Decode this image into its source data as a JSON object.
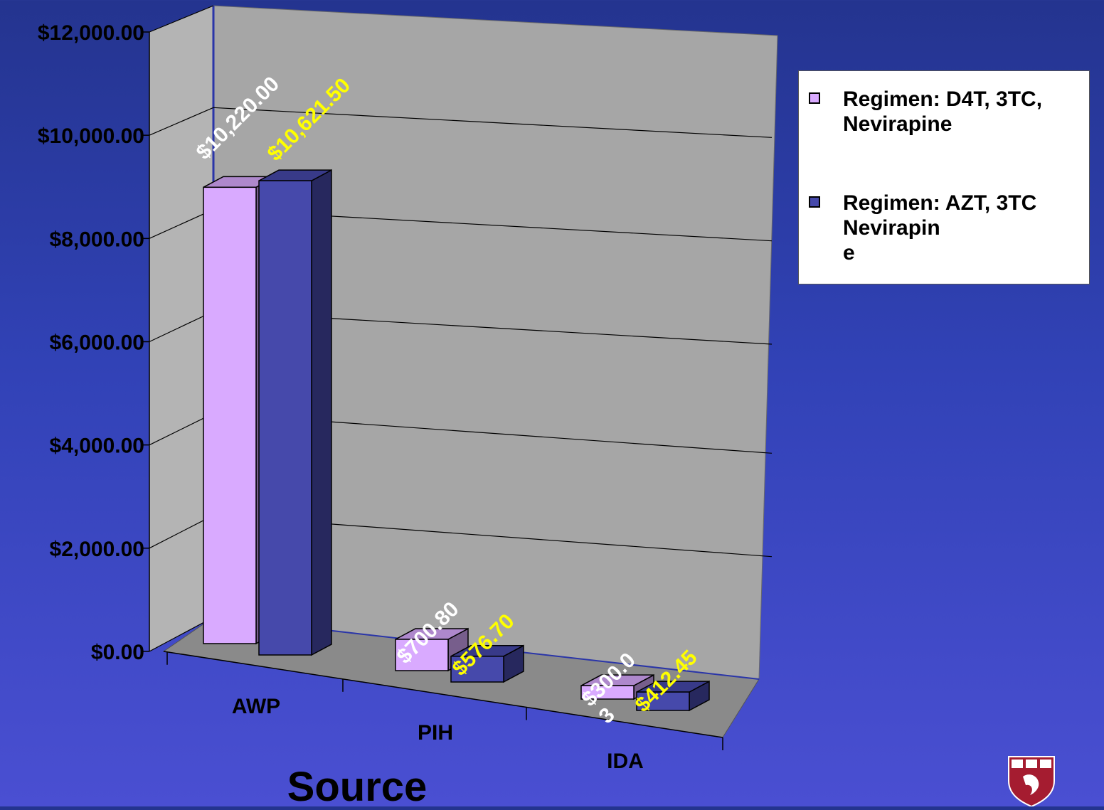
{
  "chart_data": {
    "type": "bar",
    "categories": [
      "AWP",
      "PIH",
      "IDA"
    ],
    "series": [
      {
        "name": "Regimen: D4T, 3TC,\nNevirapine",
        "values": [
          10220.0,
          700.8,
          300.03
        ],
        "labels": [
          "$10,220.00",
          "$700.80",
          "$300.0\n3"
        ],
        "color": "#d9aaff",
        "label_color": "#ffffff"
      },
      {
        "name": "Regimen: AZT, 3TC\nNevirapin\ne",
        "values": [
          10621.5,
          576.7,
          412.45
        ],
        "labels": [
          "$10,621.50",
          "$576.70",
          "$412.45"
        ],
        "color": "#4649ab",
        "label_color": "#ffff00"
      }
    ],
    "y_ticks": [
      "$0.00",
      "$2,000.00",
      "$4,000.00",
      "$6,000.00",
      "$8,000.00",
      "$10,000.00",
      "$12,000.00"
    ],
    "ylim": [
      0,
      12000
    ],
    "xlabel": "Source",
    "ylabel": "",
    "grid": true,
    "legend_position": "top-right",
    "view": "3d-perspective",
    "colors": {
      "wall": "#a6a6a6",
      "floor": "#8a8a8a",
      "side_wall": "#b4b4b4"
    }
  },
  "logo": {
    "icon": "harvard-shield-icon",
    "colors": {
      "shield": "#a51c30"
    }
  }
}
